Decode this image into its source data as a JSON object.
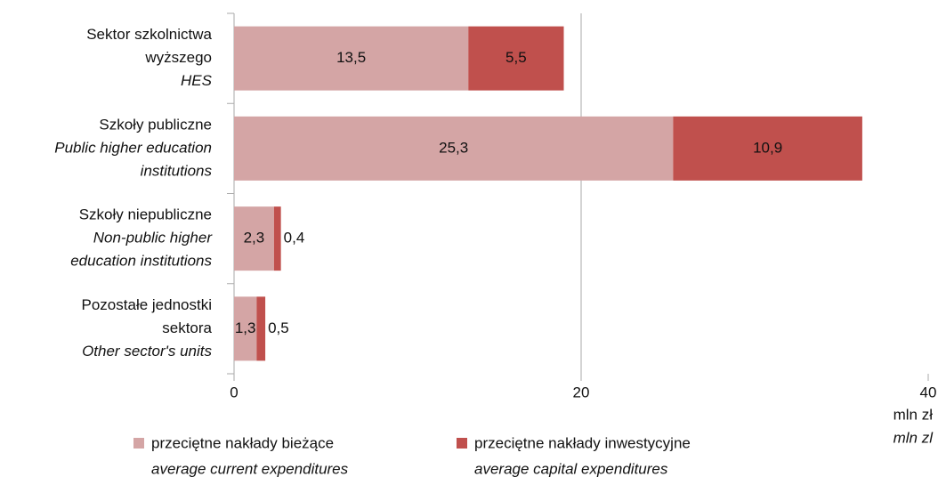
{
  "chart_data": {
    "type": "stacked_barh",
    "categories": [
      {
        "pl": [
          "Sektor szkolnictwa",
          "wyższego"
        ],
        "en": [
          "HES"
        ]
      },
      {
        "pl": [
          "Szkoły publiczne"
        ],
        "en": [
          "Public higher education",
          "institutions"
        ]
      },
      {
        "pl": [
          "Szkoły niepubliczne"
        ],
        "en": [
          "Non-public higher",
          "education institutions"
        ]
      },
      {
        "pl": [
          "Pozostałe jednostki",
          "sektora"
        ],
        "en": [
          "Other sector's units"
        ]
      }
    ],
    "series": [
      {
        "name": "przeciętne nakłady bieżące",
        "name_en": "average current expenditures",
        "color": "#d4a5a5",
        "values": [
          13.5,
          25.3,
          2.3,
          1.3
        ],
        "value_labels": [
          "13,5",
          "25,3",
          "2,3",
          "1,3"
        ]
      },
      {
        "name": "przeciętne nakłady inwestycyjne",
        "name_en": "average capital expenditures",
        "color": "#c0504d",
        "values": [
          5.5,
          10.9,
          0.4,
          0.5
        ],
        "value_labels": [
          "5,5",
          "10,9",
          "0,4",
          "0,5"
        ]
      }
    ],
    "xlim": [
      0,
      40
    ],
    "xticks": [
      0,
      20,
      40
    ],
    "xlabel": "mln zł",
    "xlabel_en": "mln zl",
    "grid": true
  }
}
